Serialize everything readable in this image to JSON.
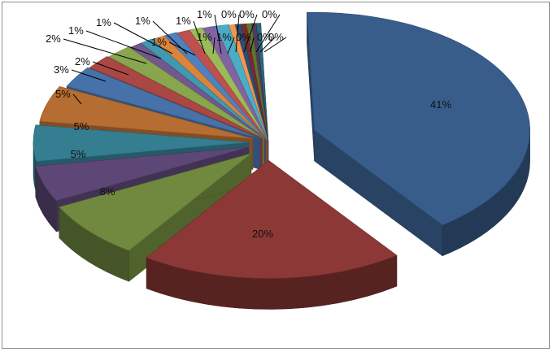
{
  "chart_data": {
    "type": "pie",
    "style": "3d-exploded",
    "title": "",
    "legend": "none",
    "slices": [
      {
        "label": "41%",
        "value": 41,
        "color": "#385D8A"
      },
      {
        "label": "20%",
        "value": 20,
        "color": "#8C3836"
      },
      {
        "label": "8%",
        "value": 8,
        "color": "#71893F"
      },
      {
        "label": "5%",
        "value": 5,
        "color": "#5C4776"
      },
      {
        "label": "5%",
        "value": 5,
        "color": "#357D91"
      },
      {
        "label": "5%",
        "value": 5,
        "color": "#B66D31"
      },
      {
        "label": "3%",
        "value": 3,
        "color": "#4671A9"
      },
      {
        "label": "2%",
        "value": 2,
        "color": "#AA4744"
      },
      {
        "label": "2%",
        "value": 2,
        "color": "#89A54E"
      },
      {
        "label": "1%",
        "value": 1,
        "color": "#71588F"
      },
      {
        "label": "1%",
        "value": 1,
        "color": "#4198AF"
      },
      {
        "label": "1%",
        "value": 1,
        "color": "#DB843D"
      },
      {
        "label": "1%",
        "value": 1,
        "color": "#4F81BD"
      },
      {
        "label": "1%",
        "value": 1,
        "color": "#C0504D"
      },
      {
        "label": "1%",
        "value": 1,
        "color": "#9BBB59"
      },
      {
        "label": "1%",
        "value": 1,
        "color": "#8064A2"
      },
      {
        "label": "1%",
        "value": 1,
        "color": "#4BACC6"
      },
      {
        "label": "0%",
        "value": 0.45,
        "color": "#F79646"
      },
      {
        "label": "0%",
        "value": 0.45,
        "color": "#2C4D75"
      },
      {
        "label": "0%",
        "value": 0.4,
        "color": "#772C2A"
      },
      {
        "label": "0%",
        "value": 0.4,
        "color": "#5F7530"
      },
      {
        "label": "0%",
        "value": 0.35,
        "color": "#4D3B62"
      },
      {
        "label": "0%",
        "value": 0.35,
        "color": "#276A7C"
      }
    ]
  }
}
